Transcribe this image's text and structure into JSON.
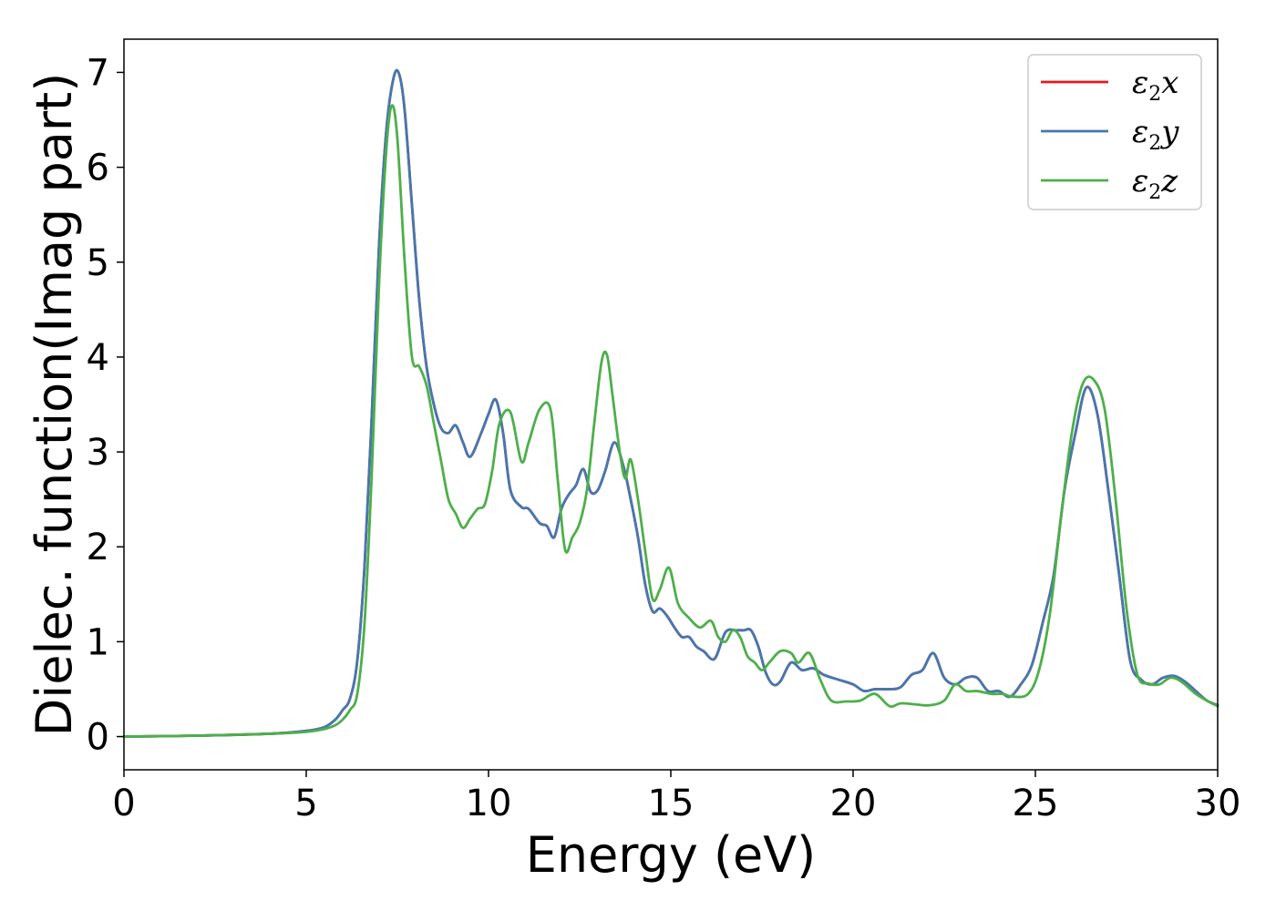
{
  "chart_data": {
    "type": "line",
    "title": "",
    "xlabel": "Energy (eV)",
    "ylabel": "Dielec. function(Imag part)",
    "xlim": [
      0,
      30
    ],
    "ylim": [
      -0.35,
      7.35
    ],
    "x_ticks": [
      "0",
      "5",
      "10",
      "15",
      "20",
      "25",
      "30"
    ],
    "y_ticks": [
      "0",
      "1",
      "2",
      "3",
      "4",
      "5",
      "6",
      "7"
    ],
    "grid": false,
    "legend": "top-right",
    "series": [
      {
        "name": "ε2x",
        "legend_base": "ε",
        "legend_sub": "2",
        "legend_suffix": "x",
        "color": "#e41a1c",
        "x": [
          0,
          2,
          4,
          5,
          5.5,
          5.8,
          6.0,
          6.2,
          6.4,
          6.6,
          6.8,
          7.0,
          7.2,
          7.4,
          7.55,
          7.7,
          7.9,
          8.1,
          8.3,
          8.5,
          8.7,
          8.9,
          9.1,
          9.3,
          9.5,
          9.8,
          10.0,
          10.2,
          10.4,
          10.6,
          10.9,
          11.1,
          11.4,
          11.6,
          11.8,
          12.0,
          12.2,
          12.4,
          12.6,
          12.8,
          13.0,
          13.2,
          13.45,
          13.7,
          13.9,
          14.1,
          14.3,
          14.5,
          14.7,
          14.9,
          15.1,
          15.3,
          15.5,
          15.7,
          15.9,
          16.2,
          16.5,
          16.8,
          17.0,
          17.2,
          17.4,
          17.6,
          17.8,
          18.0,
          18.3,
          18.6,
          18.9,
          19.2,
          19.6,
          20.0,
          20.3,
          20.6,
          21.0,
          21.3,
          21.6,
          21.9,
          22.2,
          22.5,
          22.8,
          23.1,
          23.4,
          23.7,
          24.0,
          24.3,
          24.6,
          24.9,
          25.2,
          25.5,
          25.8,
          26.1,
          26.4,
          26.7,
          27.0,
          27.3,
          27.6,
          27.9,
          28.2,
          28.5,
          28.8,
          29.1,
          29.4,
          29.7,
          30.0
        ],
        "values": [
          0.0,
          0.01,
          0.03,
          0.06,
          0.1,
          0.18,
          0.28,
          0.4,
          0.8,
          1.8,
          3.4,
          5.2,
          6.4,
          6.95,
          6.98,
          6.6,
          5.6,
          4.6,
          3.9,
          3.5,
          3.25,
          3.2,
          3.28,
          3.1,
          2.95,
          3.2,
          3.4,
          3.55,
          3.2,
          2.6,
          2.42,
          2.4,
          2.25,
          2.22,
          2.1,
          2.4,
          2.55,
          2.65,
          2.82,
          2.58,
          2.6,
          2.8,
          3.1,
          2.85,
          2.5,
          2.1,
          1.6,
          1.32,
          1.35,
          1.27,
          1.15,
          1.05,
          1.05,
          0.95,
          0.9,
          0.82,
          1.1,
          1.12,
          1.12,
          1.12,
          0.95,
          0.68,
          0.55,
          0.58,
          0.78,
          0.7,
          0.72,
          0.65,
          0.6,
          0.55,
          0.48,
          0.5,
          0.5,
          0.52,
          0.65,
          0.7,
          0.88,
          0.62,
          0.55,
          0.62,
          0.62,
          0.48,
          0.48,
          0.42,
          0.55,
          0.75,
          1.2,
          1.7,
          2.6,
          3.2,
          3.68,
          3.4,
          2.6,
          1.7,
          0.8,
          0.6,
          0.55,
          0.62,
          0.64,
          0.58,
          0.48,
          0.38,
          0.33
        ]
      },
      {
        "name": "ε2y",
        "legend_base": "ε",
        "legend_sub": "2",
        "legend_suffix": "y",
        "color": "#4478b0",
        "x": [
          0,
          2,
          4,
          5,
          5.5,
          5.8,
          6.0,
          6.2,
          6.4,
          6.6,
          6.8,
          7.0,
          7.2,
          7.4,
          7.55,
          7.7,
          7.9,
          8.1,
          8.3,
          8.5,
          8.7,
          8.9,
          9.1,
          9.3,
          9.5,
          9.8,
          10.0,
          10.2,
          10.4,
          10.6,
          10.9,
          11.1,
          11.4,
          11.6,
          11.8,
          12.0,
          12.2,
          12.4,
          12.6,
          12.8,
          13.0,
          13.2,
          13.45,
          13.7,
          13.9,
          14.1,
          14.3,
          14.5,
          14.7,
          14.9,
          15.1,
          15.3,
          15.5,
          15.7,
          15.9,
          16.2,
          16.5,
          16.8,
          17.0,
          17.2,
          17.4,
          17.6,
          17.8,
          18.0,
          18.3,
          18.6,
          18.9,
          19.2,
          19.6,
          20.0,
          20.3,
          20.6,
          21.0,
          21.3,
          21.6,
          21.9,
          22.2,
          22.5,
          22.8,
          23.1,
          23.4,
          23.7,
          24.0,
          24.3,
          24.6,
          24.9,
          25.2,
          25.5,
          25.8,
          26.1,
          26.4,
          26.7,
          27.0,
          27.3,
          27.6,
          27.9,
          28.2,
          28.5,
          28.8,
          29.1,
          29.4,
          29.7,
          30.0
        ],
        "values": [
          0.0,
          0.01,
          0.03,
          0.06,
          0.1,
          0.18,
          0.28,
          0.4,
          0.8,
          1.8,
          3.4,
          5.2,
          6.4,
          6.95,
          6.98,
          6.6,
          5.6,
          4.6,
          3.9,
          3.5,
          3.25,
          3.2,
          3.28,
          3.1,
          2.95,
          3.2,
          3.4,
          3.55,
          3.2,
          2.6,
          2.42,
          2.4,
          2.25,
          2.22,
          2.1,
          2.4,
          2.55,
          2.65,
          2.82,
          2.58,
          2.6,
          2.8,
          3.1,
          2.85,
          2.5,
          2.1,
          1.6,
          1.32,
          1.35,
          1.27,
          1.15,
          1.05,
          1.05,
          0.95,
          0.9,
          0.82,
          1.1,
          1.12,
          1.12,
          1.12,
          0.95,
          0.68,
          0.55,
          0.58,
          0.78,
          0.7,
          0.72,
          0.65,
          0.6,
          0.55,
          0.48,
          0.5,
          0.5,
          0.52,
          0.65,
          0.7,
          0.88,
          0.62,
          0.55,
          0.62,
          0.62,
          0.48,
          0.48,
          0.42,
          0.55,
          0.75,
          1.2,
          1.7,
          2.6,
          3.2,
          3.68,
          3.4,
          2.6,
          1.7,
          0.8,
          0.6,
          0.55,
          0.62,
          0.64,
          0.58,
          0.48,
          0.38,
          0.33
        ]
      },
      {
        "name": "ε2z",
        "legend_base": "ε",
        "legend_sub": "2",
        "legend_suffix": "z",
        "color": "#4daf4a",
        "x": [
          0,
          2,
          4,
          5,
          5.5,
          5.8,
          6.0,
          6.2,
          6.4,
          6.6,
          6.8,
          7.0,
          7.2,
          7.35,
          7.5,
          7.7,
          7.9,
          8.1,
          8.3,
          8.5,
          8.7,
          8.9,
          9.1,
          9.3,
          9.5,
          9.7,
          9.9,
          10.1,
          10.3,
          10.6,
          10.9,
          11.1,
          11.4,
          11.7,
          11.9,
          12.1,
          12.3,
          12.5,
          12.7,
          12.9,
          13.1,
          13.25,
          13.4,
          13.6,
          13.75,
          13.9,
          14.1,
          14.3,
          14.5,
          14.7,
          14.95,
          15.2,
          15.5,
          15.8,
          16.1,
          16.3,
          16.5,
          16.7,
          16.9,
          17.1,
          17.3,
          17.5,
          17.7,
          18.0,
          18.3,
          18.5,
          18.8,
          19.1,
          19.4,
          19.8,
          20.2,
          20.6,
          21.0,
          21.3,
          21.7,
          22.1,
          22.5,
          22.8,
          23.1,
          23.4,
          23.8,
          24.1,
          24.4,
          24.8,
          25.1,
          25.4,
          25.7,
          26.0,
          26.3,
          26.6,
          26.9,
          27.2,
          27.5,
          27.8,
          28.1,
          28.4,
          28.7,
          29.0,
          29.4,
          29.7,
          30.0
        ],
        "values": [
          0.0,
          0.01,
          0.03,
          0.05,
          0.08,
          0.12,
          0.18,
          0.28,
          0.45,
          1.2,
          2.8,
          4.8,
          6.2,
          6.65,
          6.3,
          5.0,
          4.0,
          3.9,
          3.7,
          3.3,
          2.9,
          2.5,
          2.35,
          2.2,
          2.3,
          2.4,
          2.45,
          2.8,
          3.3,
          3.42,
          2.9,
          3.1,
          3.45,
          3.45,
          2.7,
          1.97,
          2.1,
          2.25,
          2.6,
          3.3,
          3.95,
          4.02,
          3.6,
          3.0,
          2.72,
          2.92,
          2.5,
          1.95,
          1.45,
          1.55,
          1.78,
          1.4,
          1.25,
          1.15,
          1.22,
          1.05,
          1.0,
          1.12,
          1.05,
          0.85,
          0.78,
          0.7,
          0.78,
          0.9,
          0.88,
          0.78,
          0.88,
          0.6,
          0.38,
          0.37,
          0.38,
          0.45,
          0.32,
          0.35,
          0.34,
          0.33,
          0.38,
          0.55,
          0.48,
          0.48,
          0.45,
          0.45,
          0.42,
          0.45,
          0.7,
          1.3,
          2.3,
          3.2,
          3.72,
          3.76,
          3.45,
          2.5,
          1.35,
          0.65,
          0.56,
          0.55,
          0.62,
          0.58,
          0.45,
          0.38,
          0.32
        ]
      }
    ]
  }
}
